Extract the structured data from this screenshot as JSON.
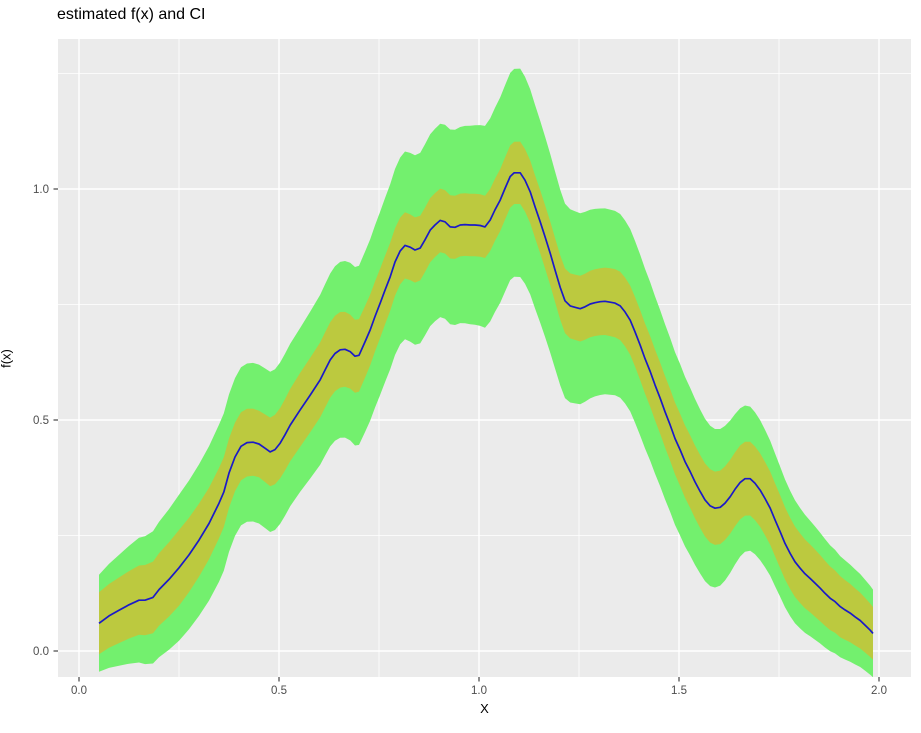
{
  "chart_data": {
    "type": "area",
    "title": "estimated f(x) and CI",
    "xlabel": "X",
    "ylabel": "f(x)",
    "x_tick_labels": [
      "0.0",
      "0.5",
      "1.0",
      "1.5",
      "2.0"
    ],
    "x_tick_values": [
      0.0,
      0.5,
      1.0,
      1.5,
      2.0
    ],
    "x_minor_values": [
      0.25,
      0.75,
      1.25,
      1.75
    ],
    "y_tick_labels": [
      "0.0",
      "0.5",
      "1.0"
    ],
    "y_tick_values": [
      0.0,
      0.5,
      1.0
    ],
    "y_minor_values": [
      0.25,
      0.75,
      1.25
    ],
    "xlim": [
      -0.0525,
      2.08
    ],
    "ylim": [
      -0.056,
      1.325
    ],
    "grid": "white major and minor gridlines on gray panel",
    "legend_position": "none",
    "colors": {
      "panel_background": "#EBEBEB",
      "gridline": "#FFFFFF",
      "outer_band": "#73F06E",
      "inner_band": "#BCC93F",
      "line": "#1A1AC8",
      "tick_label": "#4D4D4D",
      "tick_mark": "#333333",
      "title": "#000000"
    },
    "series": [
      {
        "name": "estimated f(x)",
        "type": "line",
        "color": "#1A1AC8",
        "points": [
          [
            0.05,
            0.06
          ],
          [
            0.075,
            0.076
          ],
          [
            0.1,
            0.088
          ],
          [
            0.125,
            0.1
          ],
          [
            0.15,
            0.11
          ],
          [
            0.165,
            0.11
          ],
          [
            0.185,
            0.116
          ],
          [
            0.2,
            0.133
          ],
          [
            0.225,
            0.155
          ],
          [
            0.25,
            0.18
          ],
          [
            0.275,
            0.208
          ],
          [
            0.3,
            0.24
          ],
          [
            0.325,
            0.276
          ],
          [
            0.35,
            0.32
          ],
          [
            0.362,
            0.344
          ],
          [
            0.375,
            0.385
          ],
          [
            0.39,
            0.42
          ],
          [
            0.405,
            0.443
          ],
          [
            0.42,
            0.451
          ],
          [
            0.435,
            0.452
          ],
          [
            0.45,
            0.448
          ],
          [
            0.465,
            0.439
          ],
          [
            0.478,
            0.431
          ],
          [
            0.49,
            0.436
          ],
          [
            0.503,
            0.45
          ],
          [
            0.515,
            0.468
          ],
          [
            0.528,
            0.489
          ],
          [
            0.553,
            0.522
          ],
          [
            0.578,
            0.554
          ],
          [
            0.603,
            0.587
          ],
          [
            0.615,
            0.608
          ],
          [
            0.628,
            0.63
          ],
          [
            0.64,
            0.644
          ],
          [
            0.653,
            0.652
          ],
          [
            0.665,
            0.653
          ],
          [
            0.678,
            0.648
          ],
          [
            0.69,
            0.638
          ],
          [
            0.7,
            0.64
          ],
          [
            0.715,
            0.669
          ],
          [
            0.728,
            0.695
          ],
          [
            0.74,
            0.724
          ],
          [
            0.753,
            0.753
          ],
          [
            0.765,
            0.781
          ],
          [
            0.778,
            0.81
          ],
          [
            0.79,
            0.842
          ],
          [
            0.803,
            0.866
          ],
          [
            0.815,
            0.878
          ],
          [
            0.828,
            0.874
          ],
          [
            0.84,
            0.868
          ],
          [
            0.853,
            0.872
          ],
          [
            0.865,
            0.89
          ],
          [
            0.878,
            0.911
          ],
          [
            0.89,
            0.922
          ],
          [
            0.903,
            0.932
          ],
          [
            0.915,
            0.929
          ],
          [
            0.928,
            0.918
          ],
          [
            0.94,
            0.917
          ],
          [
            0.953,
            0.922
          ],
          [
            0.965,
            0.923
          ],
          [
            0.978,
            0.922
          ],
          [
            0.99,
            0.922
          ],
          [
            1.003,
            0.921
          ],
          [
            1.015,
            0.918
          ],
          [
            1.028,
            0.933
          ],
          [
            1.04,
            0.955
          ],
          [
            1.053,
            0.976
          ],
          [
            1.065,
            1.001
          ],
          [
            1.078,
            1.027
          ],
          [
            1.088,
            1.035
          ],
          [
            1.103,
            1.035
          ],
          [
            1.115,
            1.019
          ],
          [
            1.128,
            0.994
          ],
          [
            1.14,
            0.962
          ],
          [
            1.153,
            0.929
          ],
          [
            1.165,
            0.897
          ],
          [
            1.178,
            0.861
          ],
          [
            1.19,
            0.825
          ],
          [
            1.203,
            0.787
          ],
          [
            1.215,
            0.758
          ],
          [
            1.228,
            0.747
          ],
          [
            1.24,
            0.744
          ],
          [
            1.253,
            0.741
          ],
          [
            1.265,
            0.745
          ],
          [
            1.278,
            0.751
          ],
          [
            1.29,
            0.754
          ],
          [
            1.303,
            0.756
          ],
          [
            1.315,
            0.757
          ],
          [
            1.328,
            0.755
          ],
          [
            1.34,
            0.753
          ],
          [
            1.353,
            0.747
          ],
          [
            1.365,
            0.734
          ],
          [
            1.378,
            0.716
          ],
          [
            1.39,
            0.691
          ],
          [
            1.403,
            0.662
          ],
          [
            1.415,
            0.633
          ],
          [
            1.428,
            0.605
          ],
          [
            1.44,
            0.576
          ],
          [
            1.453,
            0.547
          ],
          [
            1.465,
            0.518
          ],
          [
            1.478,
            0.489
          ],
          [
            1.49,
            0.46
          ],
          [
            1.503,
            0.435
          ],
          [
            1.515,
            0.41
          ],
          [
            1.528,
            0.388
          ],
          [
            1.54,
            0.366
          ],
          [
            1.553,
            0.345
          ],
          [
            1.565,
            0.327
          ],
          [
            1.578,
            0.314
          ],
          [
            1.59,
            0.309
          ],
          [
            1.603,
            0.311
          ],
          [
            1.615,
            0.32
          ],
          [
            1.628,
            0.334
          ],
          [
            1.64,
            0.35
          ],
          [
            1.653,
            0.365
          ],
          [
            1.665,
            0.373
          ],
          [
            1.678,
            0.373
          ],
          [
            1.69,
            0.363
          ],
          [
            1.703,
            0.348
          ],
          [
            1.715,
            0.33
          ],
          [
            1.728,
            0.309
          ],
          [
            1.74,
            0.284
          ],
          [
            1.753,
            0.258
          ],
          [
            1.765,
            0.233
          ],
          [
            1.778,
            0.211
          ],
          [
            1.79,
            0.193
          ],
          [
            1.803,
            0.179
          ],
          [
            1.815,
            0.167
          ],
          [
            1.828,
            0.157
          ],
          [
            1.84,
            0.147
          ],
          [
            1.853,
            0.136
          ],
          [
            1.865,
            0.125
          ],
          [
            1.878,
            0.114
          ],
          [
            1.89,
            0.107
          ],
          [
            1.903,
            0.096
          ],
          [
            1.915,
            0.089
          ],
          [
            1.928,
            0.082
          ],
          [
            1.94,
            0.074
          ],
          [
            1.953,
            0.066
          ],
          [
            1.965,
            0.056
          ],
          [
            1.978,
            0.045
          ],
          [
            1.985,
            0.038
          ]
        ]
      },
      {
        "name": "inner CI band",
        "type": "band_around_line",
        "color": "#BCC93F",
        "half_width_by_x": [
          [
            0.05,
            0.067
          ],
          [
            0.15,
            0.075
          ],
          [
            0.25,
            0.082
          ],
          [
            0.35,
            0.076
          ],
          [
            0.45,
            0.072
          ],
          [
            0.55,
            0.08
          ],
          [
            0.65,
            0.082
          ],
          [
            0.75,
            0.075
          ],
          [
            0.85,
            0.07
          ],
          [
            0.95,
            0.068
          ],
          [
            1.05,
            0.067
          ],
          [
            1.15,
            0.068
          ],
          [
            1.25,
            0.071
          ],
          [
            1.35,
            0.074
          ],
          [
            1.45,
            0.077
          ],
          [
            1.55,
            0.079
          ],
          [
            1.65,
            0.08
          ],
          [
            1.75,
            0.079
          ],
          [
            1.85,
            0.072
          ],
          [
            1.93,
            0.063
          ],
          [
            1.985,
            0.057
          ]
        ]
      },
      {
        "name": "outer CI band",
        "type": "band_around_line",
        "color": "#73F06E",
        "half_width_by_x": [
          [
            0.05,
            0.105
          ],
          [
            0.15,
            0.135
          ],
          [
            0.25,
            0.158
          ],
          [
            0.35,
            0.17
          ],
          [
            0.45,
            0.172
          ],
          [
            0.55,
            0.177
          ],
          [
            0.65,
            0.19
          ],
          [
            0.75,
            0.198
          ],
          [
            0.85,
            0.206
          ],
          [
            0.95,
            0.212
          ],
          [
            1.05,
            0.222
          ],
          [
            1.1,
            0.226
          ],
          [
            1.2,
            0.212
          ],
          [
            1.3,
            0.202
          ],
          [
            1.4,
            0.196
          ],
          [
            1.5,
            0.186
          ],
          [
            1.6,
            0.17
          ],
          [
            1.7,
            0.152
          ],
          [
            1.8,
            0.131
          ],
          [
            1.9,
            0.11
          ],
          [
            1.985,
            0.095
          ]
        ]
      }
    ]
  }
}
